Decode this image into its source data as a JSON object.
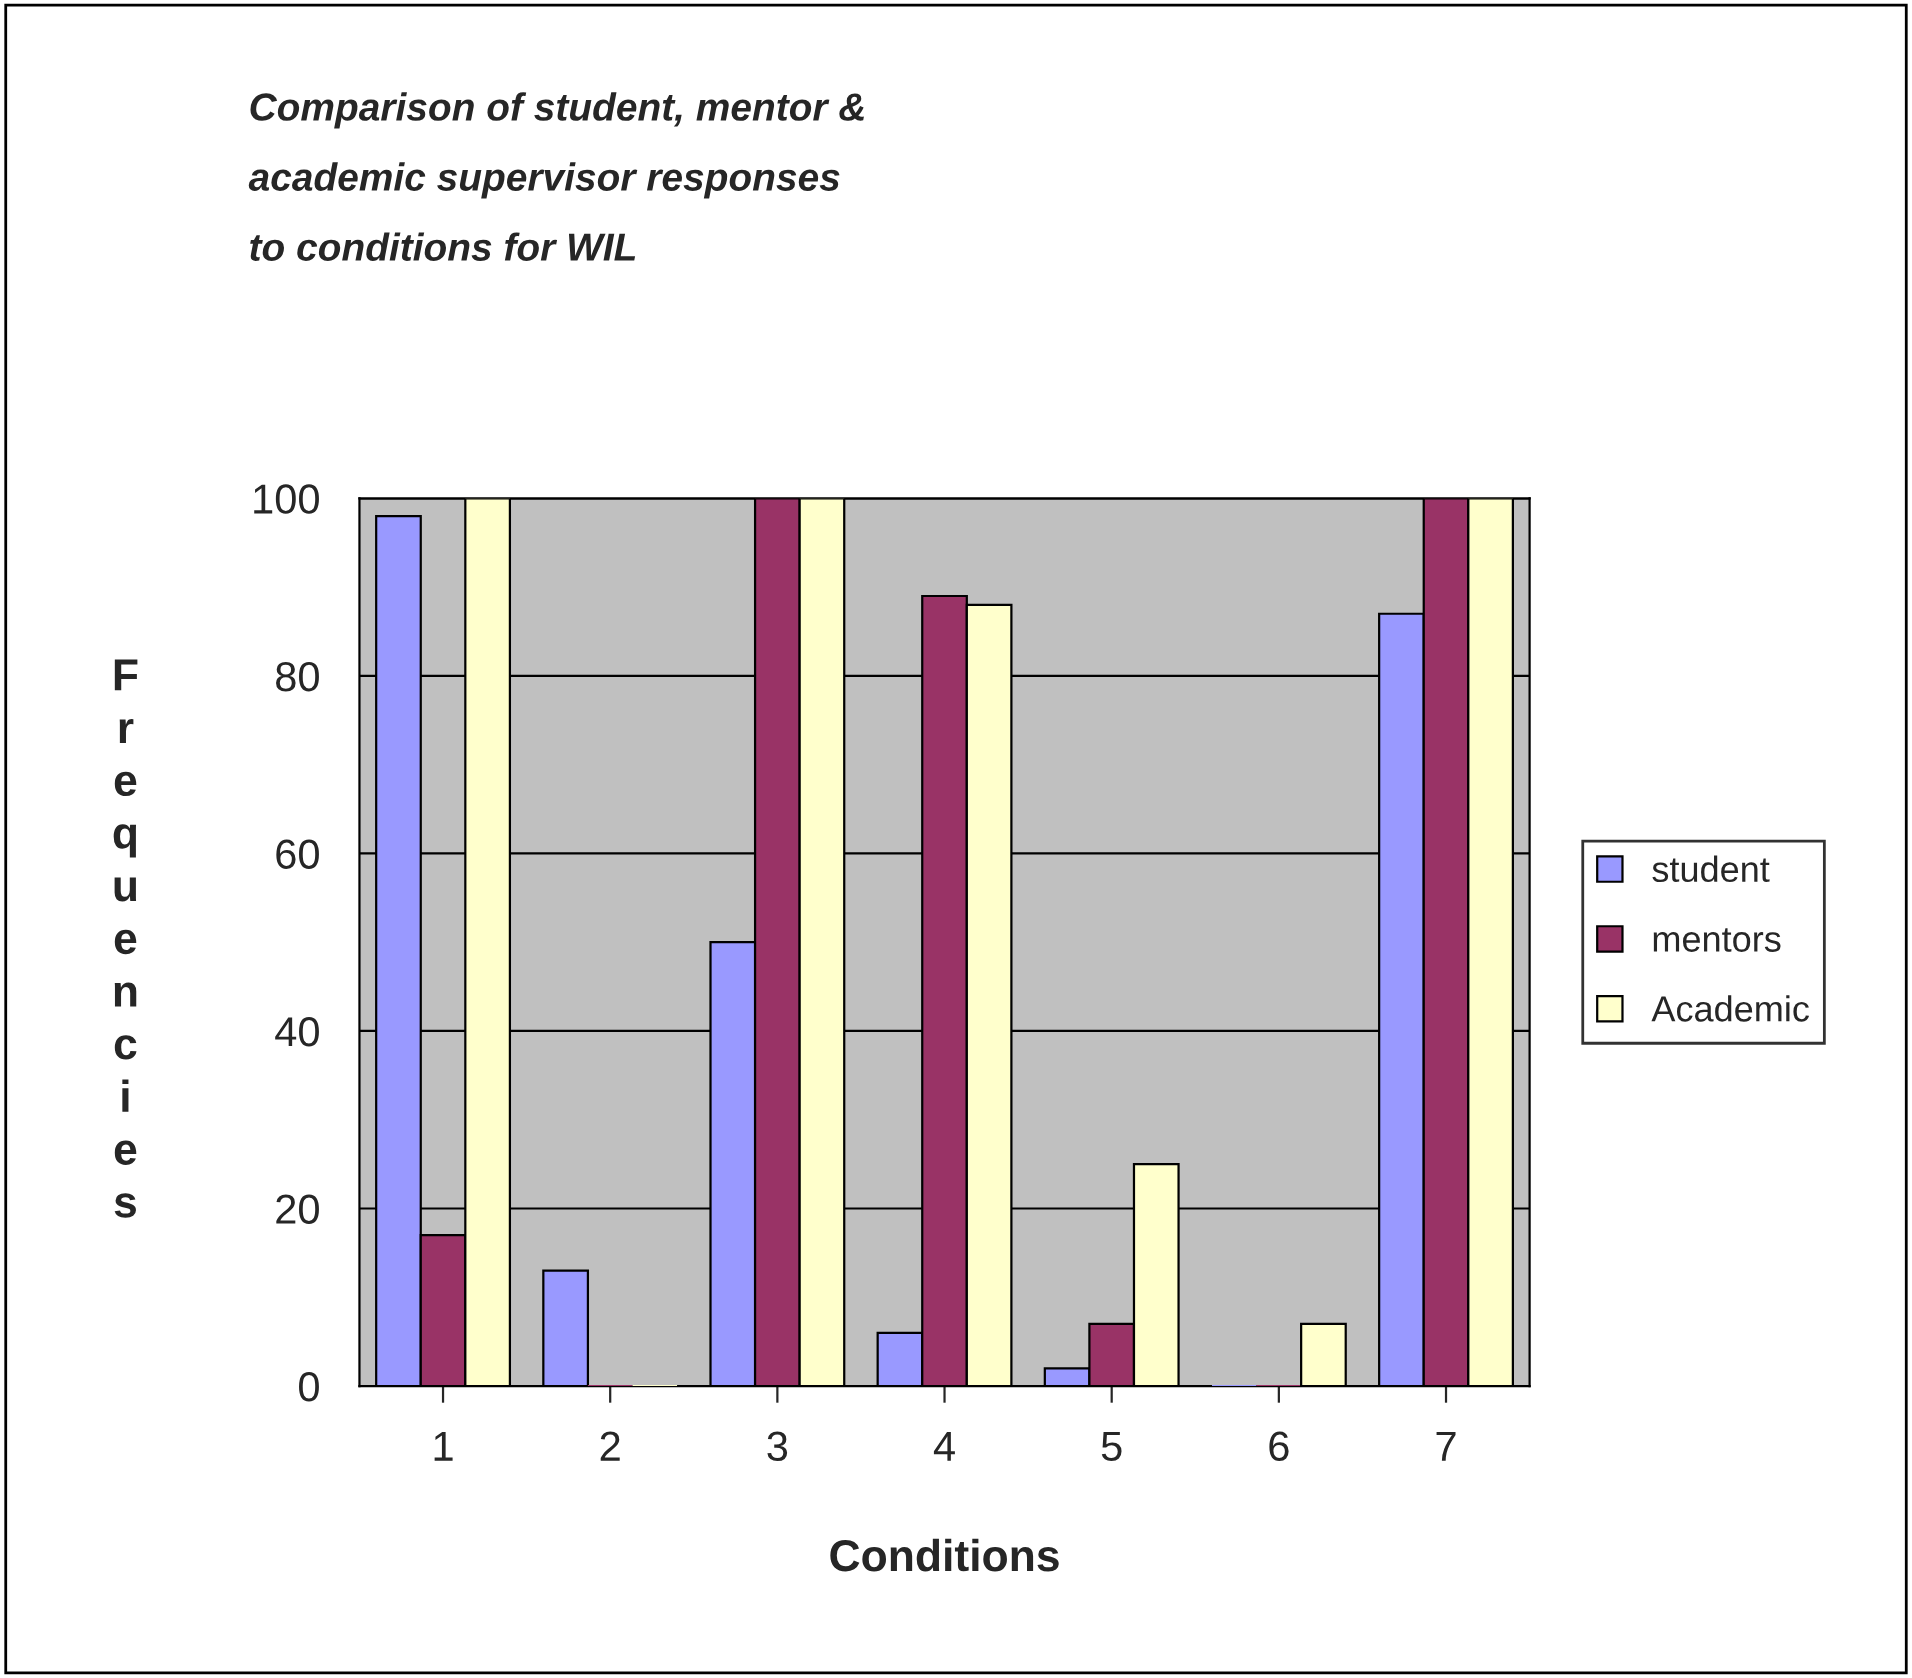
{
  "chart_data": {
    "type": "bar",
    "title": "Comparison of student, mentor &\nacademic supervisor responses\nto conditions for WIL",
    "xlabel": "Conditions",
    "ylabel": "Frequencies",
    "categories": [
      "1",
      "2",
      "3",
      "4",
      "5",
      "6",
      "7"
    ],
    "series": [
      {
        "name": "student",
        "color": "#9999ff",
        "values": [
          98,
          13,
          50,
          6,
          2,
          0,
          87
        ]
      },
      {
        "name": "mentors",
        "color": "#993366",
        "values": [
          17,
          0,
          100,
          89,
          7,
          0,
          100
        ]
      },
      {
        "name": "Academic",
        "color": "#ffffcc",
        "values": [
          100,
          0,
          100,
          88,
          25,
          7,
          100
        ]
      }
    ],
    "ylim": [
      0,
      100
    ],
    "yticks": [
      0,
      20,
      40,
      60,
      80,
      100
    ],
    "grid": "y",
    "legend": "right"
  }
}
